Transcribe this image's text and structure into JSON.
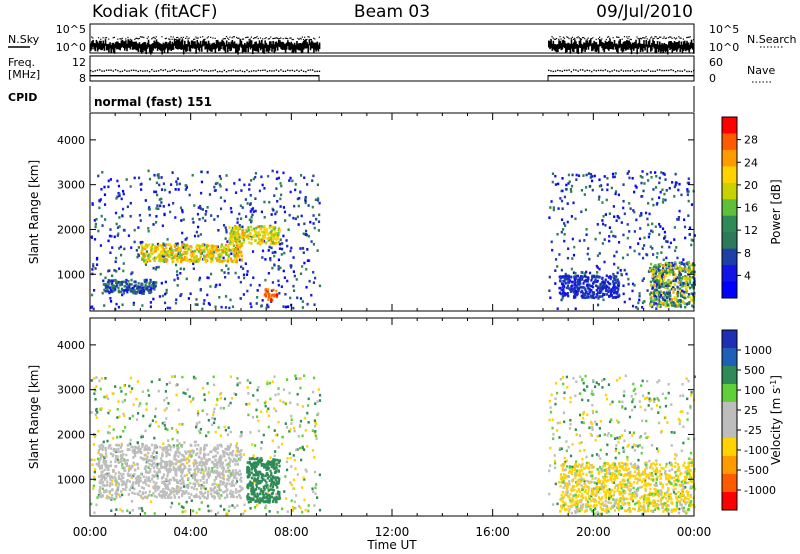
{
  "header": {
    "site": "Kodiak (fitACF)",
    "beam": "Beam 03",
    "date": "09/Jul/2010"
  },
  "strips": {
    "nsky_label": "N.Sky",
    "nsky_ticks": [
      "10^5",
      "10^0"
    ],
    "nsearch_label": "N.Search",
    "nsearch_ticks": [
      "10^5",
      "10^0"
    ],
    "freq_label": "Freq.",
    "freq_unit": "[MHz]",
    "freq_ticks": [
      "12",
      "8"
    ],
    "nave_label": "Nave",
    "nave_ticks": [
      "60",
      "0"
    ],
    "cpid_label": "CPID",
    "cpid_value": "normal (fast) 151"
  },
  "colorbars": {
    "power": {
      "label": "Power [dB]",
      "ticks": [
        "28",
        "24",
        "20",
        "16",
        "12",
        "8",
        "4"
      ],
      "colors": [
        "#ff0000",
        "#ff5a00",
        "#ff9a00",
        "#ffd200",
        "#c8d200",
        "#5fbf3a",
        "#2e8b57",
        "#2c7a5a",
        "#1e3fa8",
        "#1414e6",
        "#0000ff"
      ]
    },
    "velocity": {
      "label": "Velocity [m s",
      "label_sup": "-1",
      "label_end": "]",
      "ticks": [
        "1000",
        "500",
        "100",
        "25",
        "-25",
        "-100",
        "-500",
        "-1000"
      ],
      "colors": [
        "#1e2fb4",
        "#1f5fb8",
        "#2e8b57",
        "#5fcf3a",
        "#bdbdbd",
        "#bdbdbd",
        "#ffd200",
        "#ff9a00",
        "#ff5a00",
        "#ff0000"
      ]
    }
  },
  "chart_data": [
    {
      "type": "heatmap",
      "title": "Power",
      "xlabel": "Time UT",
      "ylabel": "Slant Range [km]",
      "x_ticks": [
        "00:00",
        "04:00",
        "08:00",
        "12:00",
        "16:00",
        "20:00",
        "00:00"
      ],
      "y_ticks": [
        "1000",
        "2000",
        "3000",
        "4000"
      ],
      "ylim": [
        180,
        4600
      ],
      "colorbar_label": "Power [dB]",
      "colorbar_range": [
        0,
        32
      ],
      "data_windows_ut_hours": [
        [
          0.0,
          9.1
        ],
        [
          18.2,
          24.0
        ]
      ],
      "features": [
        {
          "time_ut": [
            0.5,
            2.6
          ],
          "range_km": [
            600,
            900
          ],
          "power_db": [
            4,
            12
          ]
        },
        {
          "time_ut": [
            2.0,
            6.0
          ],
          "range_km": [
            1300,
            1700
          ],
          "power_db": [
            16,
            26
          ]
        },
        {
          "time_ut": [
            5.5,
            7.5
          ],
          "range_km": [
            1700,
            2100
          ],
          "power_db": [
            16,
            24
          ]
        },
        {
          "time_ut": [
            6.9,
            7.4
          ],
          "range_km": [
            450,
            700
          ],
          "power_db": [
            24,
            30
          ]
        },
        {
          "time_ut": [
            18.6,
            21.0
          ],
          "range_km": [
            500,
            1000
          ],
          "power_db": [
            4,
            8
          ]
        },
        {
          "time_ut": [
            22.2,
            24.0
          ],
          "range_km": [
            300,
            1300
          ],
          "power_db": [
            4,
            24
          ]
        }
      ]
    },
    {
      "type": "heatmap",
      "title": "Velocity",
      "xlabel": "Time UT",
      "ylabel": "Slant Range [km]",
      "x_ticks": [
        "00:00",
        "04:00",
        "08:00",
        "12:00",
        "16:00",
        "20:00",
        "00:00"
      ],
      "y_ticks": [
        "1000",
        "2000",
        "3000",
        "4000"
      ],
      "ylim": [
        180,
        4600
      ],
      "colorbar_label": "Velocity [m s-1]",
      "colorbar_range": [
        -1000,
        1000
      ],
      "data_windows_ut_hours": [
        [
          0.0,
          9.1
        ],
        [
          18.2,
          24.0
        ]
      ],
      "features": [
        {
          "time_ut": [
            0.3,
            6.0
          ],
          "range_km": [
            600,
            1800
          ],
          "velocity_mps": [
            -25,
            25
          ]
        },
        {
          "time_ut": [
            6.2,
            7.5
          ],
          "range_km": [
            500,
            1500
          ],
          "velocity_mps": [
            100,
            500
          ]
        },
        {
          "time_ut": [
            18.6,
            24.0
          ],
          "range_km": [
            300,
            1400
          ],
          "velocity_mps": [
            -500,
            100
          ]
        }
      ]
    }
  ]
}
